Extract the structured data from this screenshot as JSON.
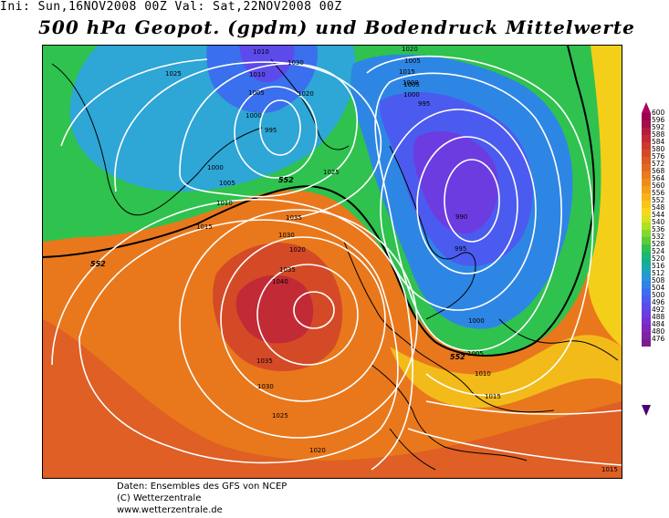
{
  "header": {
    "init_text": "Ini: Sun,16NOV2008 00Z Val: Sat,22NOV2008 00Z",
    "title": "500 hPa Geopot. (gpdm) und Bodendruck Mittelwerte"
  },
  "legend": {
    "values": [
      "600",
      "596",
      "592",
      "588",
      "584",
      "580",
      "576",
      "572",
      "568",
      "564",
      "560",
      "556",
      "552",
      "548",
      "544",
      "540",
      "536",
      "532",
      "528",
      "524",
      "520",
      "516",
      "512",
      "508",
      "504",
      "500",
      "496",
      "492",
      "488",
      "484",
      "480",
      "476"
    ],
    "colors": [
      "#9d0052",
      "#a20f4a",
      "#b21d40",
      "#c22a35",
      "#cc3a2c",
      "#d44a27",
      "#dc5a23",
      "#e26a20",
      "#e87b1d",
      "#ee8c1b",
      "#f39f1a",
      "#f7b21a",
      "#fac51a",
      "#fbd71c",
      "#d8e21e",
      "#aee024",
      "#84d82b",
      "#5bcc37",
      "#33c050",
      "#1db76e",
      "#17ad92",
      "#1fa3b7",
      "#2696d6",
      "#2f83e6",
      "#3a6fee",
      "#4b5bf0",
      "#5d4aeb",
      "#6c3ce0",
      "#7731d0",
      "#7e28bc",
      "#7f22a6",
      "#7a1e8e"
    ],
    "arrow_top_color": "#b00060",
    "arrow_bottom_color": "#4a0078"
  },
  "map": {
    "isobar_labels": [
      "1025",
      "1015",
      "1010",
      "1005",
      "1000",
      "995",
      "1030",
      "1020",
      "1010",
      "1005",
      "1000",
      "995",
      "1025",
      "1020",
      "1015",
      "1010",
      "1005",
      "1000",
      "1020",
      "1035",
      "1030",
      "1035",
      "1040",
      "1035",
      "1030",
      "1025",
      "990",
      "995",
      "1000",
      "1005",
      "1010",
      "1015",
      "1020",
      "1015",
      "1000",
      "1005"
    ],
    "contour_552_label": "552",
    "colors": {
      "ocean_warm": "#e9781c",
      "high_core": "#c53a2c",
      "green": "#2fc24e",
      "blue": "#2e86e4",
      "deep_blue": "#4c4cec",
      "yellow": "#f4cf1a"
    }
  },
  "footer": {
    "line1": "Daten: Ensembles des GFS von NCEP",
    "line2": "(C) Wetterzentrale",
    "line3": "www.wetterzentrale.de"
  }
}
